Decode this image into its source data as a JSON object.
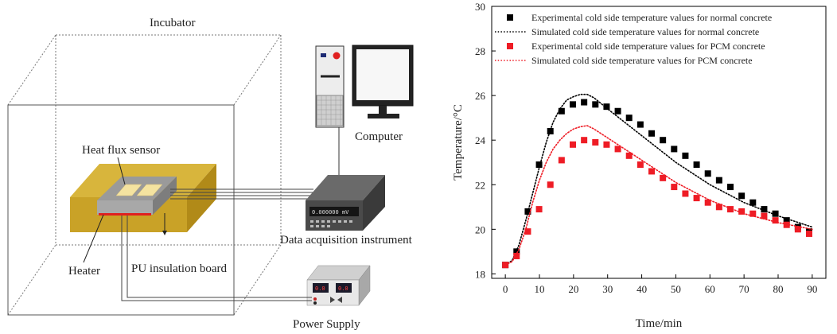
{
  "diagram": {
    "incubator": "Incubator",
    "computer": "Computer",
    "heat_flux_sensor": "Heat flux sensor",
    "data_acquisition": "Data acquisition instrument",
    "heater": "Heater",
    "pu_board": "PU insulation board",
    "power_supply": "Power Supply",
    "daq_display": "0.000000 mV",
    "psu_display_left": "0.0",
    "psu_display_right": "0.0",
    "colors": {
      "board": "#c9a227",
      "board_top": "#d8b53c",
      "heater": "#e02020",
      "device_dark": "#3c3c3c"
    }
  },
  "chart_data": {
    "type": "scatter",
    "xlabel": "Time/min",
    "ylabel": "Temperature/°C",
    "xlim": [
      -4,
      94
    ],
    "ylim": [
      17.8,
      30
    ],
    "xticks": [
      0,
      10,
      20,
      30,
      40,
      50,
      60,
      70,
      80,
      90
    ],
    "yticks": [
      18,
      20,
      22,
      24,
      26,
      28,
      30
    ],
    "legend_position": "top",
    "series": [
      {
        "name": "Experimental cold side temperature values for normal concrete",
        "kind": "markers",
        "color": "#000000",
        "x": [
          0,
          3.3,
          6.6,
          9.9,
          13.2,
          16.5,
          19.8,
          23.1,
          26.4,
          29.7,
          33,
          36.3,
          39.6,
          42.9,
          46.2,
          49.5,
          52.8,
          56.1,
          59.4,
          62.7,
          66,
          69.3,
          72.6,
          75.9,
          79.2,
          82.5,
          85.8,
          89.1
        ],
        "y": [
          18.4,
          19.0,
          20.8,
          22.9,
          24.4,
          25.3,
          25.6,
          25.7,
          25.6,
          25.5,
          25.3,
          25.0,
          24.7,
          24.3,
          24.0,
          23.6,
          23.3,
          22.9,
          22.5,
          22.2,
          21.9,
          21.5,
          21.2,
          20.9,
          20.7,
          20.4,
          20.1,
          19.9
        ]
      },
      {
        "name": "Simulated cold side temperature values for normal concrete",
        "kind": "dotted",
        "color": "#000000",
        "x": [
          0,
          2,
          4,
          6,
          8,
          10,
          12,
          14,
          16,
          18,
          20,
          22,
          24,
          26,
          28,
          30,
          35,
          40,
          45,
          50,
          55,
          60,
          65,
          70,
          75,
          80,
          85,
          90
        ],
        "y": [
          18.4,
          18.6,
          19.3,
          20.4,
          21.6,
          22.8,
          23.9,
          24.8,
          25.4,
          25.8,
          25.95,
          26.05,
          26.05,
          25.9,
          25.65,
          25.4,
          24.8,
          24.2,
          23.6,
          23.0,
          22.5,
          22.0,
          21.6,
          21.2,
          20.9,
          20.6,
          20.35,
          20.1
        ]
      },
      {
        "name": "Experimental cold side temperature values for PCM concrete",
        "kind": "markers",
        "color": "#ee1c25",
        "x": [
          0,
          3.3,
          6.6,
          9.9,
          13.2,
          16.5,
          19.8,
          23.1,
          26.4,
          29.7,
          33,
          36.3,
          39.6,
          42.9,
          46.2,
          49.5,
          52.8,
          56.1,
          59.4,
          62.7,
          66,
          69.3,
          72.6,
          75.9,
          79.2,
          82.5,
          85.8,
          89.1
        ],
        "y": [
          18.4,
          18.8,
          19.9,
          20.9,
          22.0,
          23.1,
          23.8,
          24.0,
          23.9,
          23.8,
          23.6,
          23.3,
          22.9,
          22.6,
          22.3,
          21.9,
          21.6,
          21.4,
          21.2,
          21.0,
          20.9,
          20.8,
          20.7,
          20.6,
          20.4,
          20.2,
          20.0,
          19.8
        ]
      },
      {
        "name": "Simulated cold side temperature values for PCM concrete",
        "kind": "dotted",
        "color": "#ee1c25",
        "x": [
          0,
          2,
          4,
          6,
          8,
          10,
          12,
          14,
          16,
          18,
          20,
          22,
          24,
          26,
          28,
          30,
          35,
          40,
          45,
          50,
          55,
          60,
          65,
          70,
          75,
          80,
          85,
          90
        ],
        "y": [
          18.4,
          18.55,
          19.1,
          20.0,
          21.2,
          22.2,
          23.0,
          23.6,
          24.0,
          24.3,
          24.5,
          24.6,
          24.65,
          24.5,
          24.3,
          24.1,
          23.6,
          23.1,
          22.6,
          22.1,
          21.7,
          21.3,
          21.0,
          20.7,
          20.5,
          20.3,
          20.15,
          20.0
        ]
      }
    ]
  }
}
